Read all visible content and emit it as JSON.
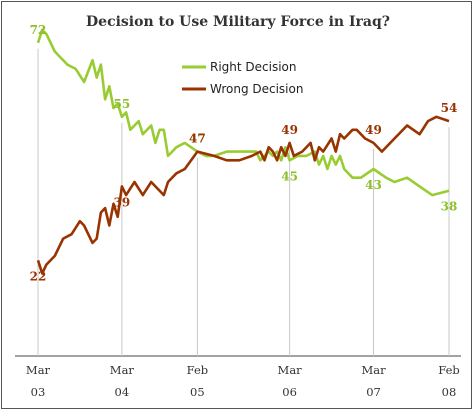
{
  "chart_data": {
    "type": "line",
    "title": "Decision to Use Military Force in Iraq?",
    "xlabel": "",
    "ylabel": "",
    "ylim": [
      0,
      100
    ],
    "grid": false,
    "legend_position": "top-center",
    "x_ticks": [
      {
        "x": 2003.2,
        "month": "Mar",
        "year": "03"
      },
      {
        "x": 2004.2,
        "month": "Mar",
        "year": "04"
      },
      {
        "x": 2005.1,
        "month": "Feb",
        "year": "05"
      },
      {
        "x": 2006.2,
        "month": "Mar",
        "year": "06"
      },
      {
        "x": 2007.2,
        "month": "Mar",
        "year": "07"
      },
      {
        "x": 2008.1,
        "month": "Feb",
        "year": "08"
      }
    ],
    "series": [
      {
        "name": "Right Decision",
        "color": "#99cc33",
        "points": [
          [
            2003.2,
            72
          ],
          [
            2003.25,
            75
          ],
          [
            2003.3,
            74
          ],
          [
            2003.4,
            70
          ],
          [
            2003.55,
            67
          ],
          [
            2003.65,
            66
          ],
          [
            2003.75,
            63
          ],
          [
            2003.85,
            68
          ],
          [
            2003.9,
            64
          ],
          [
            2003.95,
            67
          ],
          [
            2004.0,
            59
          ],
          [
            2004.05,
            62
          ],
          [
            2004.1,
            57
          ],
          [
            2004.15,
            58
          ],
          [
            2004.2,
            55
          ],
          [
            2004.25,
            56
          ],
          [
            2004.3,
            52
          ],
          [
            2004.4,
            54
          ],
          [
            2004.45,
            51
          ],
          [
            2004.55,
            53
          ],
          [
            2004.6,
            49
          ],
          [
            2004.65,
            52
          ],
          [
            2004.7,
            52
          ],
          [
            2004.75,
            46
          ],
          [
            2004.8,
            47
          ],
          [
            2004.85,
            48
          ],
          [
            2004.95,
            49
          ],
          [
            2005.1,
            47
          ],
          [
            2005.2,
            46
          ],
          [
            2005.3,
            46
          ],
          [
            2005.45,
            47
          ],
          [
            2005.6,
            47
          ],
          [
            2005.75,
            47
          ],
          [
            2005.8,
            47
          ],
          [
            2005.85,
            45
          ],
          [
            2005.9,
            46
          ],
          [
            2005.95,
            47
          ],
          [
            2006.0,
            46
          ],
          [
            2006.05,
            47
          ],
          [
            2006.1,
            45
          ],
          [
            2006.15,
            48
          ],
          [
            2006.2,
            45
          ],
          [
            2006.3,
            46
          ],
          [
            2006.4,
            46
          ],
          [
            2006.5,
            47
          ],
          [
            2006.55,
            44
          ],
          [
            2006.6,
            46
          ],
          [
            2006.65,
            43
          ],
          [
            2006.7,
            46
          ],
          [
            2006.75,
            44
          ],
          [
            2006.8,
            46
          ],
          [
            2006.85,
            43
          ],
          [
            2006.95,
            41
          ],
          [
            2007.05,
            41
          ],
          [
            2007.2,
            43
          ],
          [
            2007.35,
            41
          ],
          [
            2007.45,
            40
          ],
          [
            2007.6,
            41
          ],
          [
            2007.75,
            39
          ],
          [
            2007.9,
            37
          ],
          [
            2008.1,
            38
          ]
        ]
      },
      {
        "name": "Wrong Decision",
        "color": "#993300",
        "points": [
          [
            2003.2,
            22
          ],
          [
            2003.25,
            19
          ],
          [
            2003.3,
            21
          ],
          [
            2003.4,
            23
          ],
          [
            2003.5,
            27
          ],
          [
            2003.6,
            28
          ],
          [
            2003.7,
            31
          ],
          [
            2003.75,
            30
          ],
          [
            2003.85,
            26
          ],
          [
            2003.9,
            27
          ],
          [
            2003.95,
            33
          ],
          [
            2004.0,
            34
          ],
          [
            2004.05,
            30
          ],
          [
            2004.1,
            35
          ],
          [
            2004.15,
            32
          ],
          [
            2004.2,
            39
          ],
          [
            2004.25,
            37
          ],
          [
            2004.35,
            40
          ],
          [
            2004.45,
            37
          ],
          [
            2004.55,
            40
          ],
          [
            2004.6,
            39
          ],
          [
            2004.7,
            37
          ],
          [
            2004.75,
            40
          ],
          [
            2004.85,
            42
          ],
          [
            2004.95,
            43
          ],
          [
            2005.1,
            47
          ],
          [
            2005.3,
            46
          ],
          [
            2005.45,
            45
          ],
          [
            2005.6,
            45
          ],
          [
            2005.75,
            46
          ],
          [
            2005.85,
            47
          ],
          [
            2005.9,
            45
          ],
          [
            2005.95,
            48
          ],
          [
            2006.0,
            47
          ],
          [
            2006.05,
            45
          ],
          [
            2006.1,
            48
          ],
          [
            2006.15,
            46
          ],
          [
            2006.2,
            49
          ],
          [
            2006.25,
            46
          ],
          [
            2006.35,
            47
          ],
          [
            2006.45,
            49
          ],
          [
            2006.5,
            45
          ],
          [
            2006.55,
            48
          ],
          [
            2006.6,
            47
          ],
          [
            2006.7,
            50
          ],
          [
            2006.75,
            47
          ],
          [
            2006.8,
            51
          ],
          [
            2006.85,
            50
          ],
          [
            2006.9,
            51
          ],
          [
            2006.95,
            52
          ],
          [
            2007.0,
            52
          ],
          [
            2007.1,
            50
          ],
          [
            2007.2,
            49
          ],
          [
            2007.3,
            47
          ],
          [
            2007.45,
            50
          ],
          [
            2007.6,
            53
          ],
          [
            2007.75,
            51
          ],
          [
            2007.85,
            54
          ],
          [
            2007.95,
            55
          ],
          [
            2008.1,
            54
          ]
        ]
      }
    ],
    "data_labels": [
      {
        "series": "Right Decision",
        "x": 2003.2,
        "y": 72,
        "text": "72"
      },
      {
        "series": "Right Decision",
        "x": 2004.2,
        "y": 55,
        "text": "55"
      },
      {
        "series": "Right Decision",
        "x": 2005.1,
        "y": 47,
        "text": "47"
      },
      {
        "series": "Right Decision",
        "x": 2006.2,
        "y": 45,
        "text": "45"
      },
      {
        "series": "Right Decision",
        "x": 2007.2,
        "y": 43,
        "text": "43"
      },
      {
        "series": "Right Decision",
        "x": 2008.1,
        "y": 38,
        "text": "38"
      },
      {
        "series": "Wrong Decision",
        "x": 2003.2,
        "y": 22,
        "text": "22"
      },
      {
        "series": "Wrong Decision",
        "x": 2004.2,
        "y": 39,
        "text": "39"
      },
      {
        "series": "Wrong Decision",
        "x": 2005.1,
        "y": 47,
        "text": "47"
      },
      {
        "series": "Wrong Decision",
        "x": 2006.2,
        "y": 49,
        "text": "49"
      },
      {
        "series": "Wrong Decision",
        "x": 2007.2,
        "y": 49,
        "text": "49"
      },
      {
        "series": "Wrong Decision",
        "x": 2008.1,
        "y": 54,
        "text": "54"
      }
    ]
  }
}
